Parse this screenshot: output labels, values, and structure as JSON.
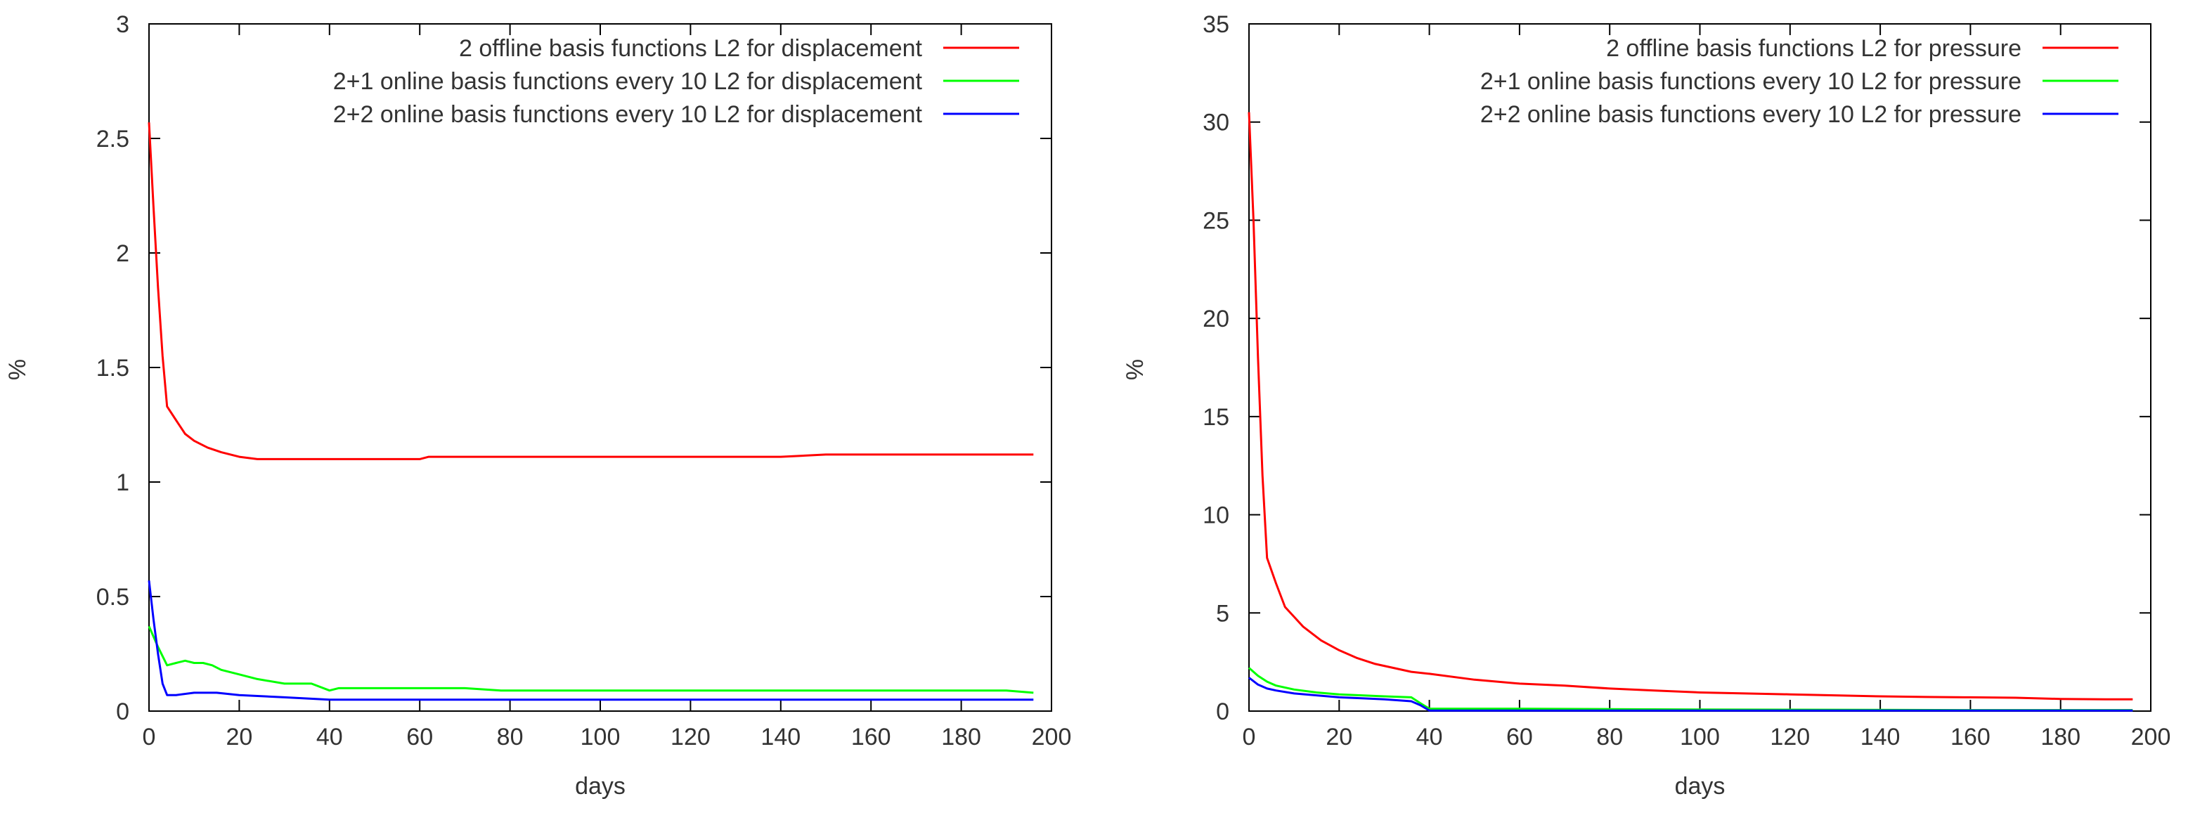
{
  "chart_data": [
    {
      "type": "line",
      "title": "",
      "xlabel": "days",
      "ylabel": "%",
      "xlim": [
        0,
        200
      ],
      "ylim": [
        0,
        3
      ],
      "xticks": [
        0,
        20,
        40,
        60,
        80,
        100,
        120,
        140,
        160,
        180,
        200
      ],
      "yticks": [
        0,
        0.5,
        1,
        1.5,
        2,
        2.5,
        3
      ],
      "ytick_labels": [
        "0",
        "0.5",
        "1",
        "1.5",
        "2",
        "2.5",
        "3"
      ],
      "legend_position": "top-right",
      "series": [
        {
          "name": "2 offline basis functions L2 for displacement",
          "color": "#ff0000",
          "x": [
            0,
            1,
            2,
            3,
            4,
            6,
            8,
            10,
            13,
            16,
            20,
            24,
            30,
            40,
            60,
            62,
            80,
            100,
            120,
            140,
            150,
            160,
            180,
            196
          ],
          "y": [
            2.57,
            2.2,
            1.85,
            1.55,
            1.33,
            1.27,
            1.21,
            1.18,
            1.15,
            1.13,
            1.11,
            1.1,
            1.1,
            1.1,
            1.1,
            1.11,
            1.11,
            1.11,
            1.11,
            1.11,
            1.12,
            1.12,
            1.12,
            1.12
          ]
        },
        {
          "name": "2+1 online basis functions every 10 L2 for displacement",
          "color": "#00ff00",
          "x": [
            0,
            2,
            4,
            6,
            8,
            10,
            12,
            14,
            16,
            20,
            24,
            30,
            36,
            40,
            42,
            50,
            60,
            70,
            78,
            80,
            90,
            100,
            120,
            130,
            140,
            150,
            160,
            170,
            180,
            190,
            196
          ],
          "y": [
            0.37,
            0.28,
            0.2,
            0.21,
            0.22,
            0.21,
            0.21,
            0.2,
            0.18,
            0.16,
            0.14,
            0.12,
            0.12,
            0.09,
            0.1,
            0.1,
            0.1,
            0.1,
            0.09,
            0.09,
            0.09,
            0.09,
            0.09,
            0.09,
            0.09,
            0.09,
            0.09,
            0.09,
            0.09,
            0.09,
            0.08
          ]
        },
        {
          "name": "2+2 online basis functions every 10 L2 for displacement",
          "color": "#0000ff",
          "x": [
            0,
            1,
            2,
            3,
            4,
            6,
            10,
            15,
            20,
            30,
            40,
            60,
            80,
            100,
            120,
            140,
            160,
            180,
            196
          ],
          "y": [
            0.57,
            0.4,
            0.25,
            0.12,
            0.07,
            0.07,
            0.08,
            0.08,
            0.07,
            0.06,
            0.05,
            0.05,
            0.05,
            0.05,
            0.05,
            0.05,
            0.05,
            0.05,
            0.05
          ]
        }
      ]
    },
    {
      "type": "line",
      "title": "",
      "xlabel": "days",
      "ylabel": "%",
      "xlim": [
        0,
        200
      ],
      "ylim": [
        0,
        35
      ],
      "xticks": [
        0,
        20,
        40,
        60,
        80,
        100,
        120,
        140,
        160,
        180,
        200
      ],
      "yticks": [
        0,
        5,
        10,
        15,
        20,
        25,
        30,
        35
      ],
      "ytick_labels": [
        "0",
        "5",
        "10",
        "15",
        "20",
        "25",
        "30",
        "35"
      ],
      "legend_position": "top-right",
      "series": [
        {
          "name": "2 offline basis functions L2 for pressure",
          "color": "#ff0000",
          "x": [
            0,
            1,
            2,
            3,
            4,
            6,
            8,
            10,
            12,
            16,
            20,
            24,
            28,
            32,
            36,
            40,
            50,
            60,
            70,
            80,
            90,
            100,
            110,
            120,
            130,
            140,
            150,
            160,
            170,
            180,
            190,
            196
          ],
          "y": [
            30.5,
            25.0,
            18.0,
            12.0,
            7.8,
            6.5,
            5.3,
            4.8,
            4.3,
            3.6,
            3.1,
            2.7,
            2.4,
            2.2,
            2.0,
            1.9,
            1.6,
            1.4,
            1.3,
            1.15,
            1.05,
            0.95,
            0.9,
            0.85,
            0.8,
            0.75,
            0.72,
            0.7,
            0.68,
            0.62,
            0.6,
            0.6
          ]
        },
        {
          "name": "2+1 online basis functions every 10 L2 for pressure",
          "color": "#00ff00",
          "x": [
            0,
            2,
            4,
            6,
            10,
            15,
            20,
            25,
            30,
            36,
            38,
            40,
            60,
            80,
            100,
            120,
            140,
            160,
            180,
            196
          ],
          "y": [
            2.2,
            1.8,
            1.5,
            1.3,
            1.1,
            0.95,
            0.85,
            0.8,
            0.75,
            0.7,
            0.4,
            0.12,
            0.12,
            0.1,
            0.08,
            0.07,
            0.06,
            0.05,
            0.05,
            0.05
          ]
        },
        {
          "name": "2+2 online basis functions every 10 L2 for pressure",
          "color": "#0000ff",
          "x": [
            0,
            2,
            4,
            6,
            10,
            15,
            20,
            25,
            30,
            36,
            38,
            40,
            60,
            80,
            100,
            120,
            140,
            160,
            180,
            196
          ],
          "y": [
            1.7,
            1.35,
            1.15,
            1.05,
            0.9,
            0.8,
            0.7,
            0.65,
            0.6,
            0.5,
            0.3,
            0.03,
            0.03,
            0.03,
            0.03,
            0.03,
            0.03,
            0.03,
            0.03,
            0.03
          ]
        }
      ]
    }
  ]
}
